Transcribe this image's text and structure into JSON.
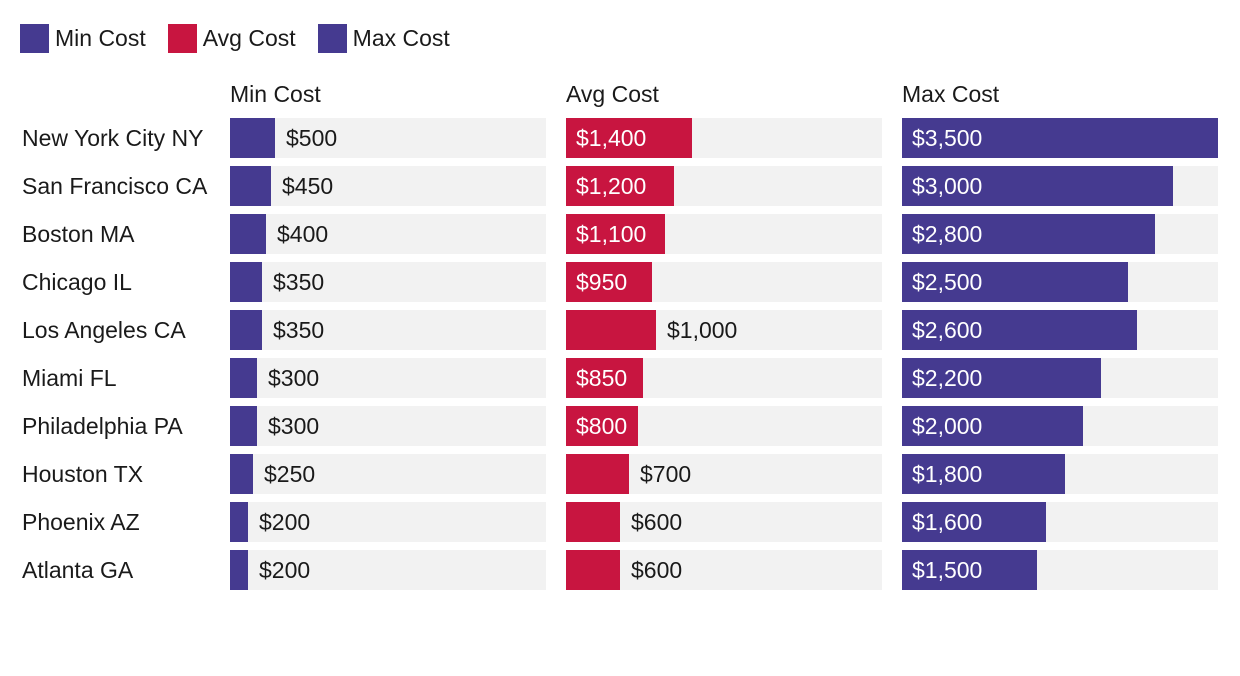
{
  "legend": [
    {
      "label": "Min Cost",
      "color": "#453a90"
    },
    {
      "label": "Avg Cost",
      "color": "#c81540"
    },
    {
      "label": "Max Cost",
      "color": "#453a90"
    }
  ],
  "chart_data": {
    "type": "bar",
    "orientation": "horizontal",
    "layout": "small-multiples",
    "legend_position": "top-left",
    "grid": false,
    "value_format": "$",
    "categories": [
      "New York City NY",
      "San Francisco CA",
      "Boston MA",
      "Chicago IL",
      "Los Angeles CA",
      "Miami FL",
      "Philadelphia PA",
      "Houston TX",
      "Phoenix AZ",
      "Atlanta GA"
    ],
    "series": [
      {
        "name": "Min Cost",
        "color": "#453a90",
        "xlim": [
          0,
          3500
        ],
        "values": [
          500,
          450,
          400,
          350,
          350,
          300,
          300,
          250,
          200,
          200
        ]
      },
      {
        "name": "Avg Cost",
        "color": "#c81540",
        "xlim": [
          0,
          3500
        ],
        "values": [
          1400,
          1200,
          1100,
          950,
          1000,
          850,
          800,
          700,
          600,
          600
        ]
      },
      {
        "name": "Max Cost",
        "color": "#453a90",
        "xlim": [
          0,
          3500
        ],
        "values": [
          3500,
          3000,
          2800,
          2500,
          2600,
          2200,
          2000,
          1800,
          1600,
          1500
        ]
      }
    ]
  }
}
